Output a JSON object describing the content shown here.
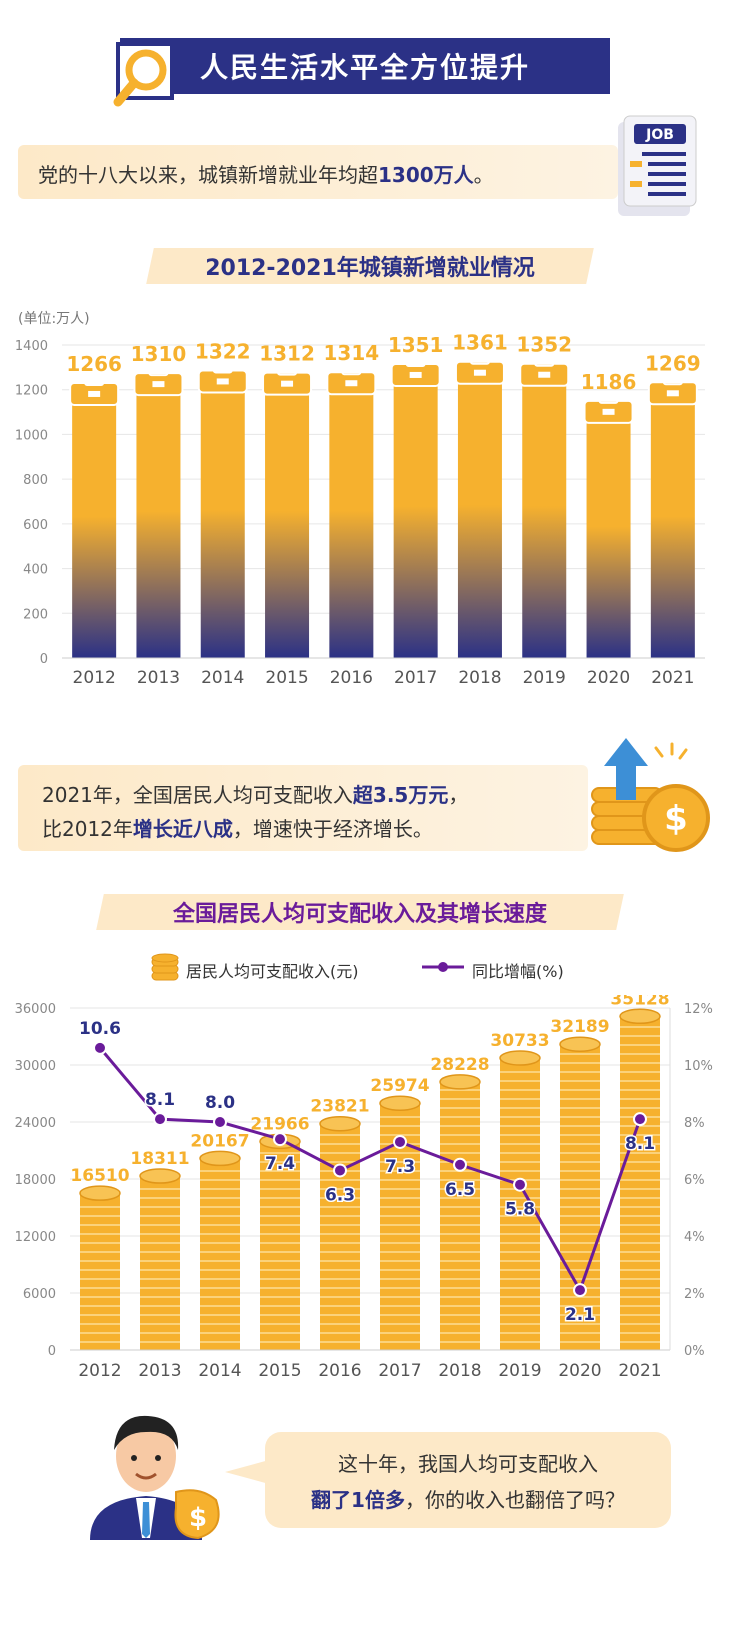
{
  "header": {
    "title": "人民生活水平全方位提升"
  },
  "note1": {
    "text_before": "党的十八大以来，城镇新增就业年均超",
    "highlight": "1300万人",
    "text_after": "。"
  },
  "job_badge": "JOB",
  "colors": {
    "navy": "#2b3186",
    "orange": "#f6b12e",
    "purple": "#6a1b9a",
    "cream": "#fde9c8"
  },
  "chart_data": [
    {
      "type": "bar",
      "title": "2012-2021年城镇新增就业情况",
      "unit_label": "(单位:万人)",
      "categories": [
        "2012",
        "2013",
        "2014",
        "2015",
        "2016",
        "2017",
        "2018",
        "2019",
        "2020",
        "2021"
      ],
      "values": [
        1266,
        1310,
        1322,
        1312,
        1314,
        1351,
        1361,
        1352,
        1186,
        1269
      ],
      "ylim": [
        0,
        1400
      ],
      "yticks": [
        "0",
        "200",
        "400",
        "600",
        "800",
        "1000",
        "1200",
        "1400"
      ],
      "grid": true
    },
    {
      "type": "bar+line",
      "title": "全国居民人均可支配收入及其增长速度",
      "categories": [
        "2012",
        "2013",
        "2014",
        "2015",
        "2016",
        "2017",
        "2018",
        "2019",
        "2020",
        "2021"
      ],
      "series": [
        {
          "name": "居民人均可支配收入(元)",
          "type": "bar",
          "values": [
            16510,
            18311,
            20167,
            21966,
            23821,
            25974,
            28228,
            30733,
            32189,
            35128
          ]
        },
        {
          "name": "同比增幅(%)",
          "type": "line",
          "values": [
            10.6,
            8.1,
            8.0,
            7.4,
            6.3,
            7.3,
            6.5,
            5.8,
            2.1,
            8.1
          ]
        }
      ],
      "ylim_left": [
        0,
        36000
      ],
      "yticks_left": [
        "0",
        "6000",
        "12000",
        "18000",
        "24000",
        "30000",
        "36000"
      ],
      "ylim_right": [
        0,
        12
      ],
      "yticks_right": [
        "0%",
        "2%",
        "4%",
        "6%",
        "8%",
        "10%",
        "12%"
      ],
      "grid": true
    }
  ],
  "note2": {
    "l1_before": "2021年，全国居民人均可支配收入",
    "l1_highlight": "超3.5万元",
    "l1_after": "，",
    "l2_before": "比2012年",
    "l2_highlight": "增长近八成",
    "l2_after": "，增速快于经济增长。"
  },
  "bubble": {
    "l1": "这十年，我国人均可支配收入",
    "l2_highlight": "翻了1倍多",
    "l2_after": "，你的收入也翻倍了吗？"
  }
}
